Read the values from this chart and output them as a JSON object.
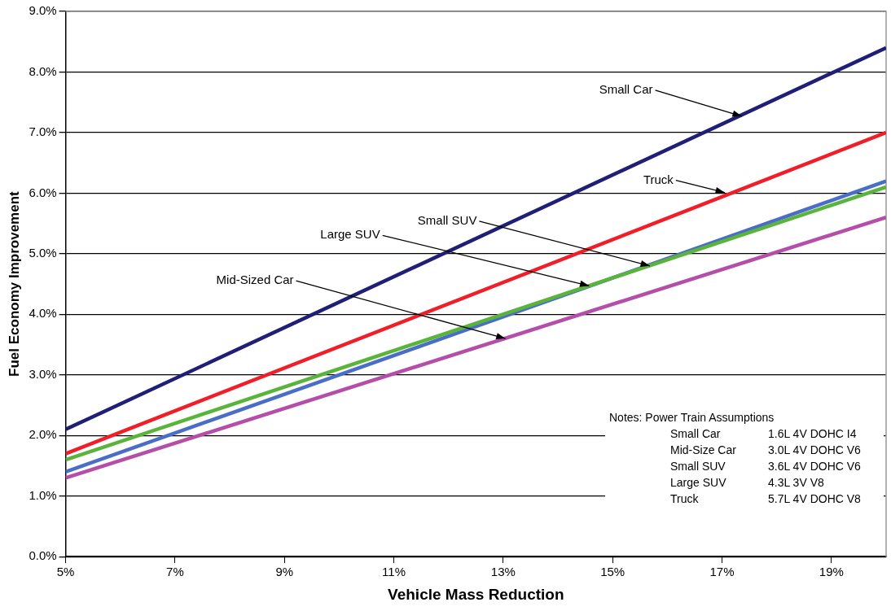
{
  "chart_data": {
    "type": "line",
    "xlabel": "Vehicle Mass Reduction",
    "ylabel": "Fuel Economy Improvement",
    "xlim": [
      5,
      20
    ],
    "xticks": [
      {
        "value": 5,
        "label": "5%"
      },
      {
        "value": 7,
        "label": "7%"
      },
      {
        "value": 9,
        "label": "9%"
      },
      {
        "value": 11,
        "label": "11%"
      },
      {
        "value": 13,
        "label": "13%"
      },
      {
        "value": 15,
        "label": "15%"
      },
      {
        "value": 17,
        "label": "17%"
      },
      {
        "value": 19,
        "label": "19%"
      }
    ],
    "ylim": [
      0,
      9
    ],
    "yticks": [
      {
        "value": 0,
        "label": "0.0%"
      },
      {
        "value": 1,
        "label": "1.0%"
      },
      {
        "value": 2,
        "label": "2.0%"
      },
      {
        "value": 3,
        "label": "3.0%"
      },
      {
        "value": 4,
        "label": "4.0%"
      },
      {
        "value": 5,
        "label": "5.0%"
      },
      {
        "value": 6,
        "label": "6.0%"
      },
      {
        "value": 7,
        "label": "7.0%"
      },
      {
        "value": 8,
        "label": "8.0%"
      },
      {
        "value": 9,
        "label": "9.0%"
      }
    ],
    "x": [
      5,
      20
    ],
    "series": [
      {
        "color": "#1f1f78",
        "values": [
          2.1,
          8.4
        ]
      },
      {
        "color": "#f01e28",
        "values": [
          1.7,
          7.0
        ]
      },
      {
        "color": "#5ab43c",
        "values": [
          1.6,
          6.1
        ]
      },
      {
        "color": "#4a6ec8",
        "values": [
          1.4,
          6.2
        ]
      },
      {
        "color": "#b44ea8",
        "values": [
          1.3,
          5.6
        ]
      }
    ],
    "annotations": [
      {
        "text": "Small Car",
        "x": 17.36,
        "y": 7.27
      },
      {
        "text": "Truck",
        "x": 17.05,
        "y": 6.01
      },
      {
        "text": "Small SUV",
        "x": 15.68,
        "y": 4.8
      },
      {
        "text": "Large SUV",
        "x": 14.57,
        "y": 4.47
      },
      {
        "text": "Mid-Sized Car",
        "x": 13.04,
        "y": 3.6
      },
      "Notes: Power Train Assumptions",
      "Small Car",
      "1.6L 4V DOHC I4",
      "Mid-Size Car",
      "3.0L 4V DOHC V6",
      "Small SUV",
      "3.6L 4V DOHC V6",
      "Large SUV",
      "4.3L 3V V8",
      "Truck",
      "5.7L 4V DOHC V8"
    ],
    "grid": "y",
    "legend": false,
    "marker": "none",
    "line_style": "solid"
  }
}
